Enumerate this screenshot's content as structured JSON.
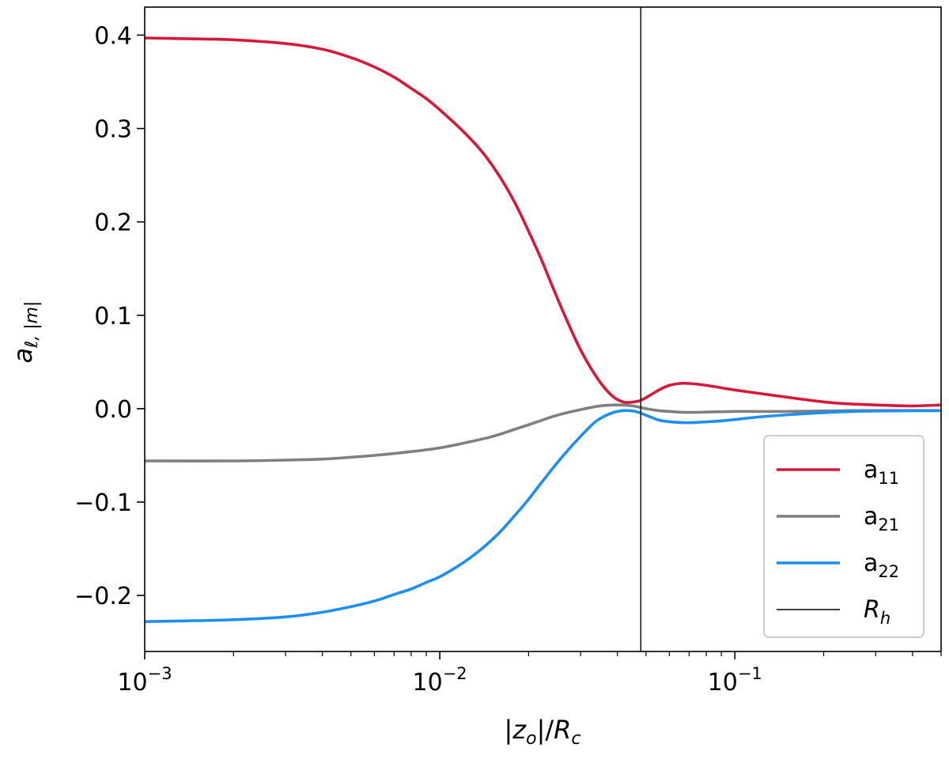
{
  "chart_data": {
    "type": "line",
    "title": "",
    "xlabel": "|z_o|/R_c",
    "ylabel": "a_{ℓ,|m|}",
    "xscale": "log",
    "xlim": [
      0.001,
      0.5
    ],
    "ylim": [
      -0.26,
      0.43
    ],
    "grid": false,
    "legend_position": "lower-right",
    "x_ticks": [
      {
        "value": 0.001,
        "base": "10",
        "exp": "−3"
      },
      {
        "value": 0.01,
        "base": "10",
        "exp": "−2"
      },
      {
        "value": 0.1,
        "base": "10",
        "exp": "−1"
      }
    ],
    "y_ticks": [
      {
        "value": 0.4,
        "label": "0.4"
      },
      {
        "value": 0.3,
        "label": "0.3"
      },
      {
        "value": 0.2,
        "label": "0.2"
      },
      {
        "value": 0.1,
        "label": "0.1"
      },
      {
        "value": 0.0,
        "label": "0.0"
      },
      {
        "value": -0.1,
        "label": "−0.1"
      },
      {
        "value": -0.2,
        "label": "−0.2"
      }
    ],
    "series": [
      {
        "name": "a_11",
        "label_base": "a",
        "label_sub": "11",
        "color": "#d6193a",
        "points": [
          [
            0.001,
            0.397
          ],
          [
            0.0015,
            0.396
          ],
          [
            0.002,
            0.395
          ],
          [
            0.003,
            0.391
          ],
          [
            0.004,
            0.385
          ],
          [
            0.005,
            0.376
          ],
          [
            0.006,
            0.366
          ],
          [
            0.007,
            0.355
          ],
          [
            0.008,
            0.343
          ],
          [
            0.009,
            0.332
          ],
          [
            0.01,
            0.32
          ],
          [
            0.012,
            0.297
          ],
          [
            0.014,
            0.274
          ],
          [
            0.016,
            0.248
          ],
          [
            0.018,
            0.22
          ],
          [
            0.02,
            0.19
          ],
          [
            0.022,
            0.161
          ],
          [
            0.024,
            0.132
          ],
          [
            0.026,
            0.106
          ],
          [
            0.028,
            0.083
          ],
          [
            0.03,
            0.063
          ],
          [
            0.033,
            0.04
          ],
          [
            0.036,
            0.023
          ],
          [
            0.039,
            0.012
          ],
          [
            0.042,
            0.007
          ],
          [
            0.045,
            0.007
          ],
          [
            0.048,
            0.009
          ],
          [
            0.052,
            0.015
          ],
          [
            0.056,
            0.021
          ],
          [
            0.06,
            0.025
          ],
          [
            0.065,
            0.027
          ],
          [
            0.07,
            0.027
          ],
          [
            0.08,
            0.025
          ],
          [
            0.1,
            0.02
          ],
          [
            0.13,
            0.015
          ],
          [
            0.17,
            0.01
          ],
          [
            0.22,
            0.006
          ],
          [
            0.3,
            0.004
          ],
          [
            0.4,
            0.003
          ],
          [
            0.5,
            0.004
          ]
        ]
      },
      {
        "name": "a_21",
        "label_base": "a",
        "label_sub": "21",
        "color": "#7f7f7f",
        "points": [
          [
            0.001,
            -0.056
          ],
          [
            0.002,
            -0.056
          ],
          [
            0.003,
            -0.055
          ],
          [
            0.004,
            -0.054
          ],
          [
            0.005,
            -0.052
          ],
          [
            0.006,
            -0.05
          ],
          [
            0.008,
            -0.046
          ],
          [
            0.01,
            -0.042
          ],
          [
            0.012,
            -0.037
          ],
          [
            0.015,
            -0.03
          ],
          [
            0.018,
            -0.022
          ],
          [
            0.021,
            -0.015
          ],
          [
            0.025,
            -0.007
          ],
          [
            0.03,
            -0.001
          ],
          [
            0.035,
            0.003
          ],
          [
            0.04,
            0.004
          ],
          [
            0.045,
            0.003
          ],
          [
            0.05,
            0.0
          ],
          [
            0.055,
            -0.002
          ],
          [
            0.06,
            -0.003
          ],
          [
            0.07,
            -0.004
          ],
          [
            0.1,
            -0.003
          ],
          [
            0.15,
            -0.003
          ],
          [
            0.25,
            -0.002
          ],
          [
            0.5,
            -0.002
          ]
        ]
      },
      {
        "name": "a_22",
        "label_base": "a",
        "label_sub": "22",
        "color": "#1e8ff0",
        "points": [
          [
            0.001,
            -0.228
          ],
          [
            0.0015,
            -0.227
          ],
          [
            0.002,
            -0.226
          ],
          [
            0.003,
            -0.223
          ],
          [
            0.004,
            -0.218
          ],
          [
            0.005,
            -0.212
          ],
          [
            0.006,
            -0.206
          ],
          [
            0.007,
            -0.199
          ],
          [
            0.008,
            -0.193
          ],
          [
            0.009,
            -0.186
          ],
          [
            0.01,
            -0.18
          ],
          [
            0.012,
            -0.165
          ],
          [
            0.014,
            -0.149
          ],
          [
            0.016,
            -0.132
          ],
          [
            0.018,
            -0.114
          ],
          [
            0.02,
            -0.097
          ],
          [
            0.022,
            -0.08
          ],
          [
            0.025,
            -0.058
          ],
          [
            0.028,
            -0.04
          ],
          [
            0.031,
            -0.025
          ],
          [
            0.034,
            -0.013
          ],
          [
            0.038,
            -0.005
          ],
          [
            0.042,
            -0.002
          ],
          [
            0.046,
            -0.003
          ],
          [
            0.05,
            -0.007
          ],
          [
            0.055,
            -0.012
          ],
          [
            0.06,
            -0.014
          ],
          [
            0.07,
            -0.015
          ],
          [
            0.09,
            -0.013
          ],
          [
            0.12,
            -0.009
          ],
          [
            0.16,
            -0.006
          ],
          [
            0.25,
            -0.003
          ],
          [
            0.5,
            -0.002
          ]
        ]
      }
    ],
    "vline": {
      "name": "R_h",
      "label_base": "R",
      "label_sub": "h",
      "x": 0.048,
      "color": "#000000"
    }
  }
}
